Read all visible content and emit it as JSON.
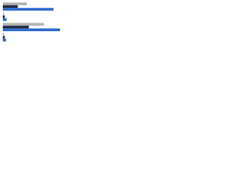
{
  "chart_data": {
    "type": "bar",
    "orientation": "horizontal",
    "categories": [
      null,
      null,
      null,
      null
    ],
    "series": [
      {
        "color": "#b3b3b3",
        "values": [
          37,
          2,
          63,
          2
        ]
      },
      {
        "color": "#1f2b45",
        "values": [
          23,
          3,
          40,
          3
        ]
      },
      {
        "color": "#2f6ccc",
        "values": [
          78,
          6,
          88,
          5
        ]
      }
    ],
    "xlim": [
      0,
      100
    ]
  }
}
